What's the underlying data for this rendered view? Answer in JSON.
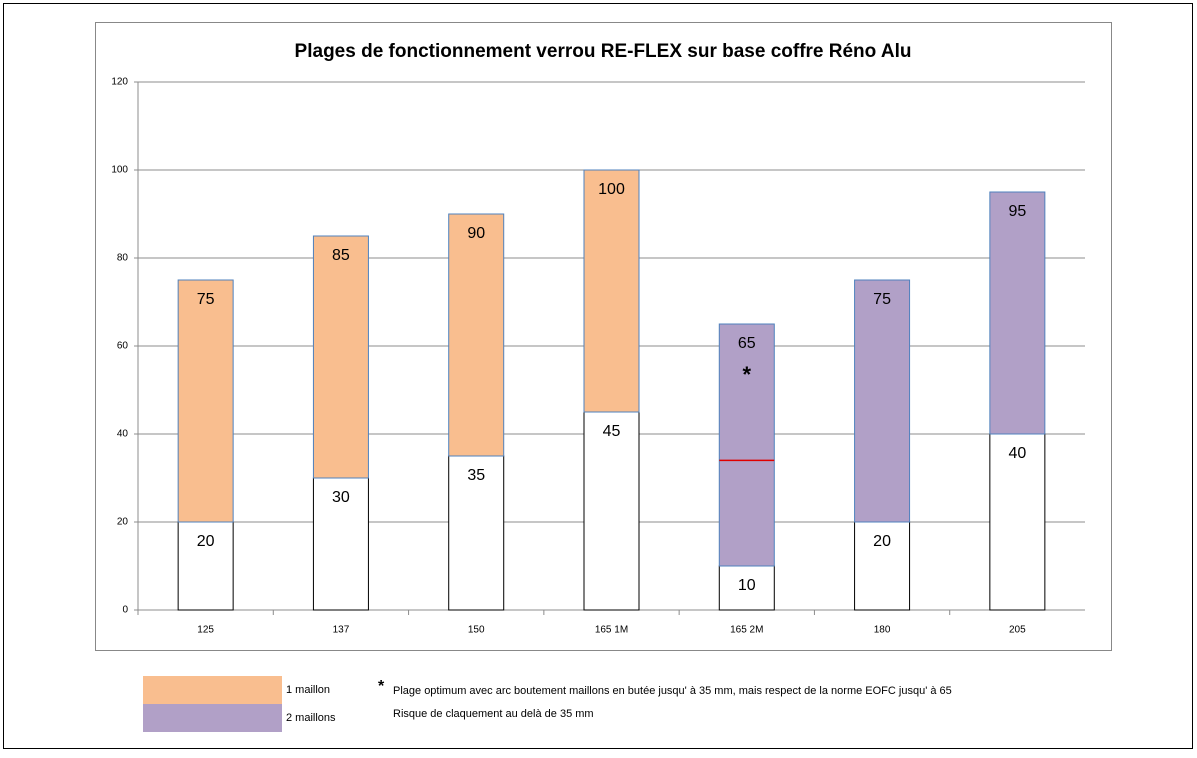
{
  "chart_data": {
    "type": "range_bar",
    "title": "Plages de fonctionnement verrou RE-FLEX sur base coffre Réno Alu",
    "categories": [
      "125",
      "137",
      "150",
      "165 1M",
      "165 2M",
      "180",
      "205"
    ],
    "series": [
      {
        "name": "1 maillon",
        "color": "#f9be8f",
        "low": [
          20,
          30,
          35,
          45,
          null,
          null,
          null
        ],
        "values": [
          75,
          85,
          90,
          100,
          null,
          null,
          null
        ]
      },
      {
        "name": "2 maillons",
        "color": "#b1a0c7",
        "low": [
          null,
          null,
          null,
          null,
          10,
          20,
          40
        ],
        "values": [
          null,
          null,
          null,
          null,
          65,
          75,
          95
        ],
        "notes": [
          null,
          null,
          null,
          null,
          "*",
          null,
          null
        ]
      }
    ],
    "threshold": {
      "values": [
        null,
        null,
        null,
        null,
        34,
        null,
        null
      ],
      "color": "#e00000"
    },
    "ylim": [
      0,
      120
    ],
    "yticks": [
      0,
      20,
      40,
      60,
      80,
      100,
      120
    ],
    "grid": true,
    "footnote_marker": "*",
    "footnote": [
      "Plage optimum avec arc boutement maillons en butée jusqu' à 35 mm, mais respect de la norme EOFC jusqu' à 65",
      "Risque de claquement au delà de 35 mm"
    ]
  }
}
